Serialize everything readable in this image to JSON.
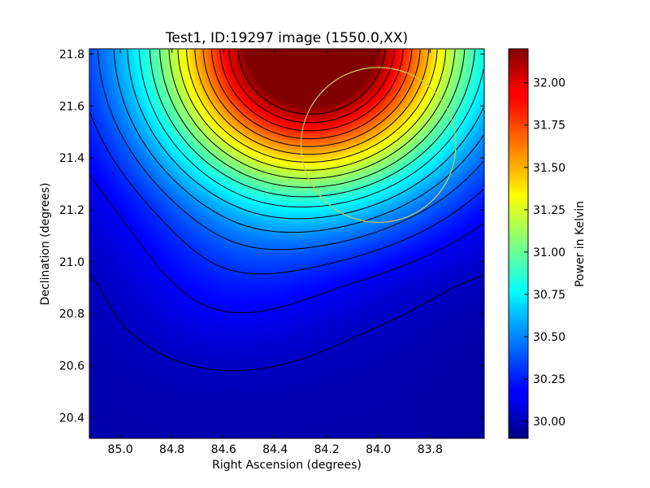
{
  "chart_data": {
    "type": "heatmap",
    "title": "Test1, ID:19297 image (1550.0,XX)",
    "xlabel": "Right Ascension (degrees)",
    "ylabel": "Declination (degrees)",
    "xlim": [
      85.12,
      83.59
    ],
    "ylim": [
      20.32,
      21.82
    ],
    "x_ticks": [
      "85.0",
      "84.8",
      "84.6",
      "84.4",
      "84.2",
      "84.0",
      "83.8"
    ],
    "y_ticks": [
      "20.4",
      "20.6",
      "20.8",
      "21.0",
      "21.2",
      "21.4",
      "21.6",
      "21.8"
    ],
    "colorbar": {
      "label": "Power in Kelvin",
      "range": [
        29.9,
        32.2
      ],
      "ticks": [
        "30.00",
        "30.25",
        "30.50",
        "30.75",
        "31.00",
        "31.25",
        "31.50",
        "31.75",
        "32.00"
      ],
      "colormap": "jet"
    },
    "peak": {
      "ra": 84.33,
      "dec": 21.82,
      "value": 32.2
    },
    "beam_circle": {
      "ra": 84.0,
      "dec": 21.45,
      "radius_deg": 0.3,
      "color": "#cccc55"
    },
    "grid": false
  }
}
